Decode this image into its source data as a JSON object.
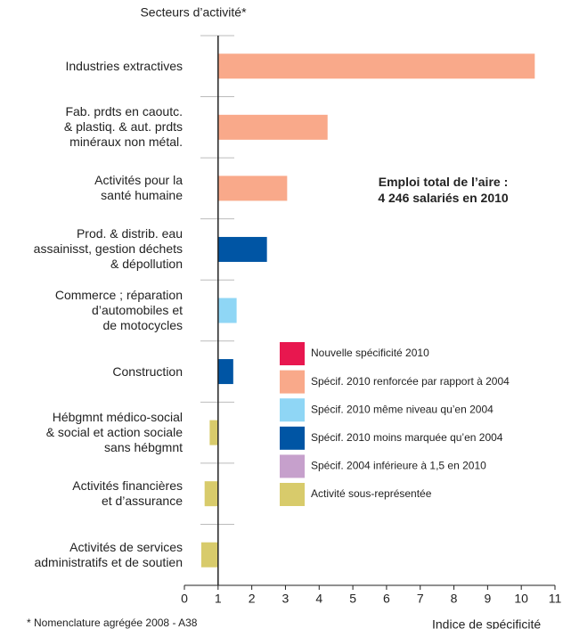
{
  "chart_data": {
    "type": "hbar",
    "title": "Secteurs d’activité*",
    "x_label": "Indice de spécificité",
    "footnote": "* Nomenclature agrégée 2008 - A38",
    "annotation": "Emploi total de l’aire :\n4 246 salariés en 2010",
    "categories": [
      "Industries extractives",
      "Fab. prdts en caoutc.\n& plastiq. & aut. prdts\nminéraux non métal.",
      "Activités pour la\nsanté humaine",
      "Prod. & distrib. eau\nassainisst, gestion déchets\n& dépollution",
      "Commerce ; réparation\nd’automobiles et\nde motocycles",
      "Construction",
      "Hébgmnt médico-social\n& social et action sociale\nsans hébgmnt",
      "Activités financières\net d’assurance",
      "Activités de services\nadministratifs et de soutien"
    ],
    "values": [
      10.4,
      4.25,
      3.05,
      2.45,
      1.55,
      1.45,
      0.75,
      0.6,
      0.5
    ],
    "colors": [
      "#f9a98a",
      "#f9a98a",
      "#f9a98a",
      "#0055a4",
      "#8fd6f5",
      "#0055a4",
      "#d8cb6b",
      "#d8cb6b",
      "#d8cb6b"
    ],
    "base": 1,
    "xlim": [
      0,
      11
    ],
    "xticks": [
      0,
      1,
      2,
      3,
      4,
      5,
      6,
      7,
      8,
      9,
      10,
      11
    ],
    "legend": [
      {
        "name": "Nouvelle spécificité 2010",
        "color": "#e8174f"
      },
      {
        "name": "Spécif. 2010 renforcée par rapport à 2004",
        "color": "#f9a98a"
      },
      {
        "name": "Spécif. 2010 même niveau qu’en 2004",
        "color": "#8fd6f5"
      },
      {
        "name": "Spécif. 2010 moins marquée qu’en 2004",
        "color": "#0055a4"
      },
      {
        "name": "Spécif. 2004 inférieure à 1,5 en 2010",
        "color": "#c6a0cc"
      },
      {
        "name": "Activité sous-représentée",
        "color": "#d8cb6b"
      }
    ]
  }
}
